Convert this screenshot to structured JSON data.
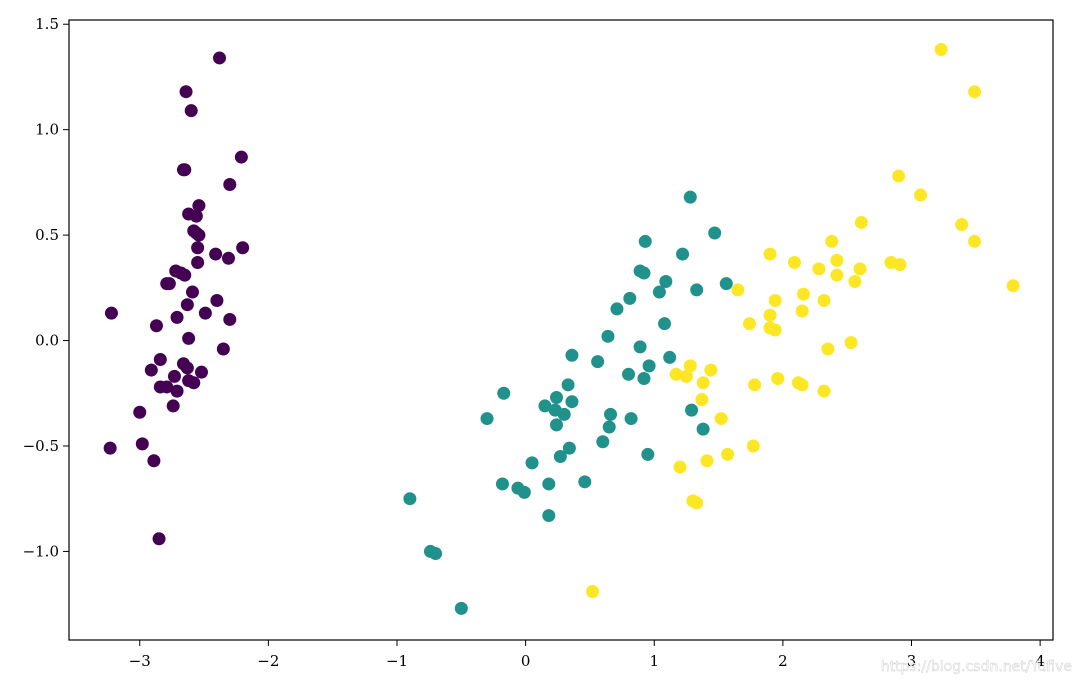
{
  "chart_data": {
    "type": "scatter",
    "title": "",
    "xlabel": "",
    "ylabel": "",
    "xlim": [
      -3.55,
      4.1
    ],
    "ylim": [
      -1.42,
      1.52
    ],
    "grid": false,
    "legend": "none",
    "x_ticks": [
      -3,
      -2,
      -1,
      0,
      1,
      2,
      3,
      4
    ],
    "x_tick_labels": [
      "−3",
      "−2",
      "−1",
      "0",
      "1",
      "2",
      "3",
      "4"
    ],
    "y_ticks": [
      -1.0,
      -0.5,
      0.0,
      0.5,
      1.0,
      1.5
    ],
    "y_tick_labels": [
      "−1.0",
      "−0.5",
      "0.0",
      "0.5",
      "1.0",
      "1.5"
    ],
    "series": [
      {
        "color": "#440154",
        "points": [
          [
            -2.38,
            1.34
          ],
          [
            -2.64,
            1.18
          ],
          [
            -2.6,
            1.09
          ],
          [
            -2.21,
            0.87
          ],
          [
            -2.65,
            0.81
          ],
          [
            -2.66,
            0.81
          ],
          [
            -2.3,
            0.74
          ],
          [
            -2.54,
            0.64
          ],
          [
            -2.62,
            0.6
          ],
          [
            -2.56,
            0.59
          ],
          [
            -2.58,
            0.52
          ],
          [
            -2.56,
            0.51
          ],
          [
            -2.54,
            0.5
          ],
          [
            -2.2,
            0.44
          ],
          [
            -2.55,
            0.44
          ],
          [
            -2.41,
            0.41
          ],
          [
            -2.31,
            0.39
          ],
          [
            -2.55,
            0.37
          ],
          [
            -2.72,
            0.33
          ],
          [
            -2.68,
            0.32
          ],
          [
            -2.65,
            0.31
          ],
          [
            -2.77,
            0.27
          ],
          [
            -2.79,
            0.27
          ],
          [
            -2.59,
            0.23
          ],
          [
            -2.4,
            0.19
          ],
          [
            -2.63,
            0.17
          ],
          [
            -2.49,
            0.13
          ],
          [
            -3.22,
            0.13
          ],
          [
            -2.71,
            0.11
          ],
          [
            -2.3,
            0.1
          ],
          [
            -2.87,
            0.07
          ],
          [
            -2.62,
            0.01
          ],
          [
            -2.35,
            -0.04
          ],
          [
            -2.84,
            -0.09
          ],
          [
            -2.66,
            -0.11
          ],
          [
            -2.63,
            -0.13
          ],
          [
            -2.91,
            -0.14
          ],
          [
            -2.52,
            -0.15
          ],
          [
            -2.73,
            -0.17
          ],
          [
            -2.62,
            -0.19
          ],
          [
            -2.58,
            -0.2
          ],
          [
            -2.84,
            -0.22
          ],
          [
            -2.79,
            -0.22
          ],
          [
            -2.71,
            -0.24
          ],
          [
            -2.74,
            -0.31
          ],
          [
            -3.0,
            -0.34
          ],
          [
            -2.98,
            -0.49
          ],
          [
            -3.23,
            -0.51
          ],
          [
            -2.89,
            -0.57
          ],
          [
            -2.85,
            -0.94
          ]
        ]
      },
      {
        "color": "#21918c",
        "points": [
          [
            1.28,
            0.68
          ],
          [
            1.47,
            0.51
          ],
          [
            0.93,
            0.47
          ],
          [
            1.22,
            0.41
          ],
          [
            0.89,
            0.33
          ],
          [
            0.92,
            0.32
          ],
          [
            1.09,
            0.28
          ],
          [
            1.56,
            0.27
          ],
          [
            1.33,
            0.24
          ],
          [
            1.04,
            0.23
          ],
          [
            0.81,
            0.2
          ],
          [
            0.71,
            0.15
          ],
          [
            1.08,
            0.08
          ],
          [
            0.64,
            0.02
          ],
          [
            0.89,
            -0.03
          ],
          [
            0.36,
            -0.07
          ],
          [
            0.56,
            -0.1
          ],
          [
            1.12,
            -0.08
          ],
          [
            0.96,
            -0.12
          ],
          [
            0.8,
            -0.16
          ],
          [
            0.92,
            -0.18
          ],
          [
            0.33,
            -0.21
          ],
          [
            -0.17,
            -0.25
          ],
          [
            0.24,
            -0.27
          ],
          [
            0.36,
            -0.29
          ],
          [
            0.15,
            -0.31
          ],
          [
            0.23,
            -0.33
          ],
          [
            0.3,
            -0.35
          ],
          [
            1.29,
            -0.33
          ],
          [
            0.66,
            -0.35
          ],
          [
            -0.3,
            -0.37
          ],
          [
            0.82,
            -0.37
          ],
          [
            0.24,
            -0.4
          ],
          [
            1.38,
            -0.42
          ],
          [
            0.65,
            -0.41
          ],
          [
            0.34,
            -0.51
          ],
          [
            0.6,
            -0.48
          ],
          [
            0.27,
            -0.55
          ],
          [
            0.95,
            -0.54
          ],
          [
            0.05,
            -0.58
          ],
          [
            -0.18,
            -0.68
          ],
          [
            0.18,
            -0.68
          ],
          [
            0.46,
            -0.67
          ],
          [
            -0.06,
            -0.7
          ],
          [
            -0.01,
            -0.72
          ],
          [
            -0.9,
            -0.75
          ],
          [
            0.18,
            -0.83
          ],
          [
            -0.74,
            -1.0
          ],
          [
            -0.7,
            -1.01
          ],
          [
            -0.5,
            -1.27
          ]
        ]
      },
      {
        "color": "#fde725",
        "points": [
          [
            3.23,
            1.38
          ],
          [
            3.49,
            1.18
          ],
          [
            2.9,
            0.78
          ],
          [
            3.07,
            0.69
          ],
          [
            2.61,
            0.56
          ],
          [
            3.39,
            0.55
          ],
          [
            3.49,
            0.47
          ],
          [
            2.38,
            0.47
          ],
          [
            1.9,
            0.41
          ],
          [
            2.09,
            0.37
          ],
          [
            2.42,
            0.38
          ],
          [
            2.84,
            0.37
          ],
          [
            2.91,
            0.36
          ],
          [
            2.6,
            0.34
          ],
          [
            2.28,
            0.34
          ],
          [
            2.42,
            0.31
          ],
          [
            2.56,
            0.28
          ],
          [
            3.79,
            0.26
          ],
          [
            1.65,
            0.24
          ],
          [
            2.16,
            0.22
          ],
          [
            1.94,
            0.19
          ],
          [
            2.32,
            0.19
          ],
          [
            2.15,
            0.14
          ],
          [
            1.9,
            0.12
          ],
          [
            1.74,
            0.08
          ],
          [
            1.9,
            0.06
          ],
          [
            1.94,
            0.05
          ],
          [
            2.53,
            -0.01
          ],
          [
            2.35,
            -0.04
          ],
          [
            1.44,
            -0.14
          ],
          [
            1.17,
            -0.16
          ],
          [
            1.25,
            -0.17
          ],
          [
            1.96,
            -0.18
          ],
          [
            1.28,
            -0.12
          ],
          [
            1.38,
            -0.2
          ],
          [
            1.78,
            -0.21
          ],
          [
            2.12,
            -0.2
          ],
          [
            2.15,
            -0.21
          ],
          [
            1.37,
            -0.28
          ],
          [
            2.32,
            -0.24
          ],
          [
            1.52,
            -0.37
          ],
          [
            1.77,
            -0.5
          ],
          [
            1.57,
            -0.54
          ],
          [
            1.41,
            -0.57
          ],
          [
            1.2,
            -0.6
          ],
          [
            1.3,
            -0.76
          ],
          [
            1.33,
            -0.77
          ],
          [
            0.52,
            -1.19
          ]
        ]
      }
    ]
  },
  "watermark": {
    "text": "https://blog.csdn.net/Yufive"
  }
}
